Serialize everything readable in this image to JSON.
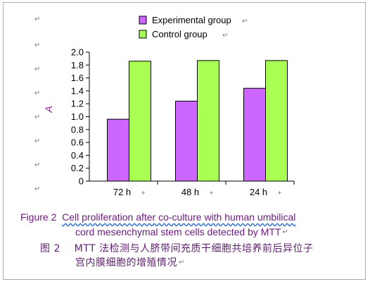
{
  "chart_data": {
    "type": "bar",
    "categories": [
      "72 h",
      "48 h",
      "24 h"
    ],
    "series": [
      {
        "name": "Experimental group",
        "values": [
          0.96,
          1.24,
          1.44
        ],
        "color": "#cc66ff"
      },
      {
        "name": "Control group",
        "values": [
          1.86,
          1.87,
          1.87
        ],
        "color": "#aaff55"
      }
    ],
    "ylabel": "A",
    "ylim": [
      0,
      2.0
    ],
    "yticks": [
      "0",
      "0.2",
      "0.4",
      "0.6",
      "0.8",
      "1.0",
      "1.2",
      "1.4",
      "1.6",
      "1.8",
      "2.0"
    ],
    "legend_position": "top",
    "grid": false
  },
  "caption": {
    "en_label": "Figure 2",
    "en_line1": "Cell proliferation after co-culture with human umbilical",
    "en_line2": "cord mesenchymal stem cells detected by MTT",
    "zh_label": "图 2",
    "zh_line1": "MTT 法检测与人脐带间充质干细胞共培养前后异位子",
    "zh_line2": "宫内膜细胞的增殖情况"
  },
  "marks": {
    "paragraph": "↵",
    "arrow": "↵",
    "plus": "+"
  }
}
